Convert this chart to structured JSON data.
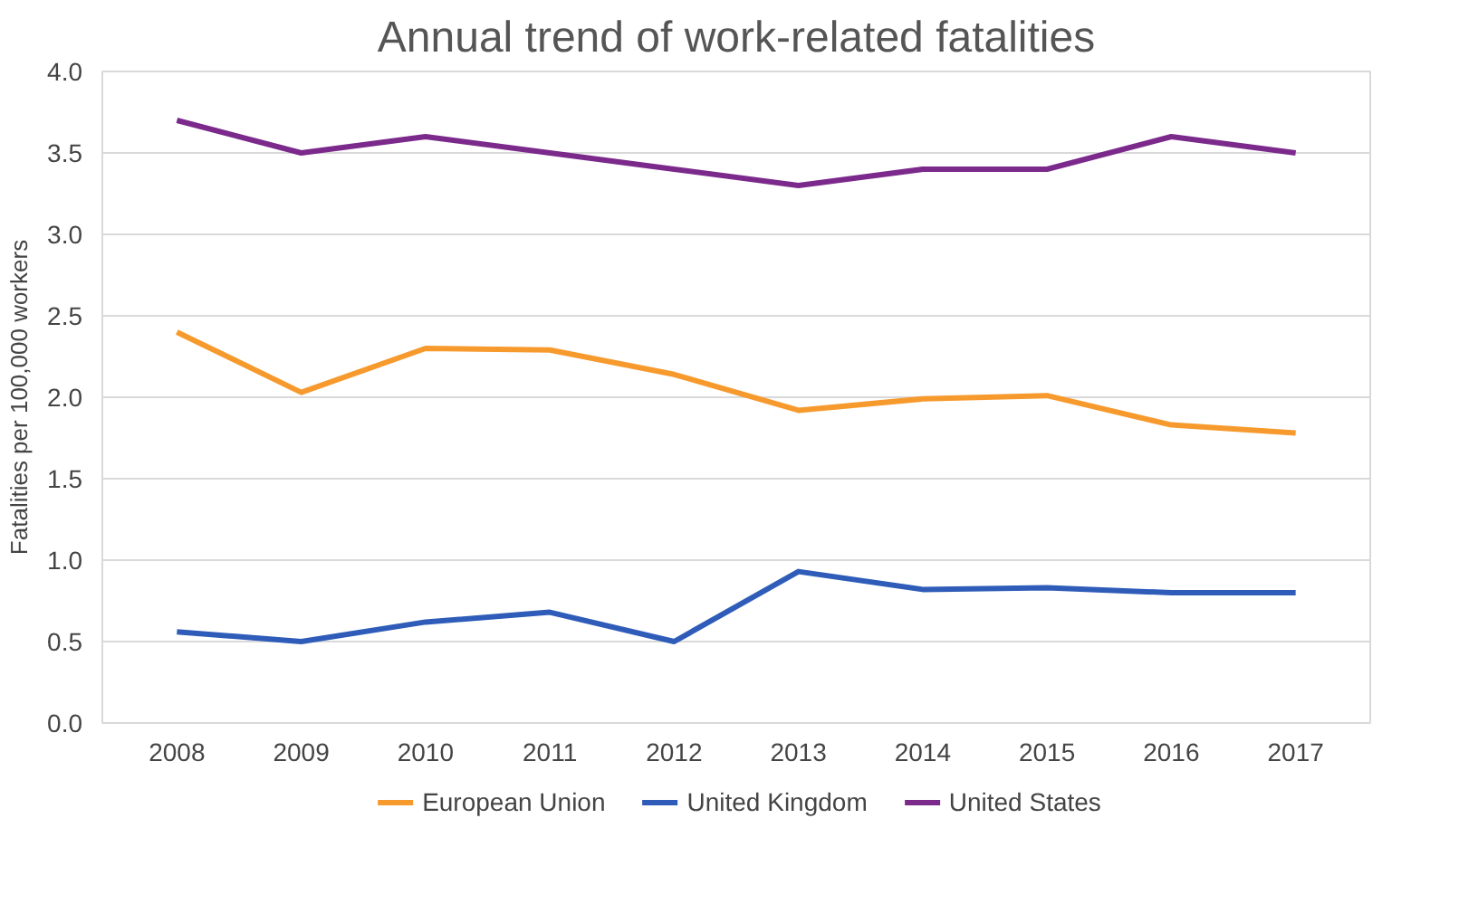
{
  "chart_data": {
    "type": "line",
    "title": "Annual trend of work-related fatalities",
    "ylabel": "Fatalities per 100,000 workers",
    "categories": [
      "2008",
      "2009",
      "2010",
      "2011",
      "2012",
      "2013",
      "2014",
      "2015",
      "2016",
      "2017"
    ],
    "series": [
      {
        "name": "European Union",
        "color": "#f79a2e",
        "values": [
          2.4,
          2.03,
          2.3,
          2.29,
          2.14,
          1.92,
          1.99,
          2.01,
          1.83,
          1.78
        ]
      },
      {
        "name": "United Kingdom",
        "color": "#2e5cb8",
        "values": [
          0.56,
          0.5,
          0.62,
          0.68,
          0.5,
          0.93,
          0.82,
          0.83,
          0.8,
          0.8
        ]
      },
      {
        "name": "United States",
        "color": "#7b2a8c",
        "values": [
          3.7,
          3.5,
          3.6,
          3.5,
          3.4,
          3.3,
          3.4,
          3.4,
          3.6,
          3.5
        ]
      }
    ],
    "ylim": [
      0,
      4
    ],
    "yticks": [
      {
        "value": 0,
        "label": "0.0"
      },
      0.5,
      {
        "value": 1,
        "label": "1.0"
      },
      1.5,
      {
        "value": 2,
        "label": "2.0"
      },
      2.5,
      {
        "value": 3,
        "label": "3.0"
      },
      3.5,
      {
        "value": 4,
        "label": "4.0"
      }
    ],
    "grid": "y",
    "legend": "bottom",
    "marker": "none",
    "line_style": "solid"
  }
}
